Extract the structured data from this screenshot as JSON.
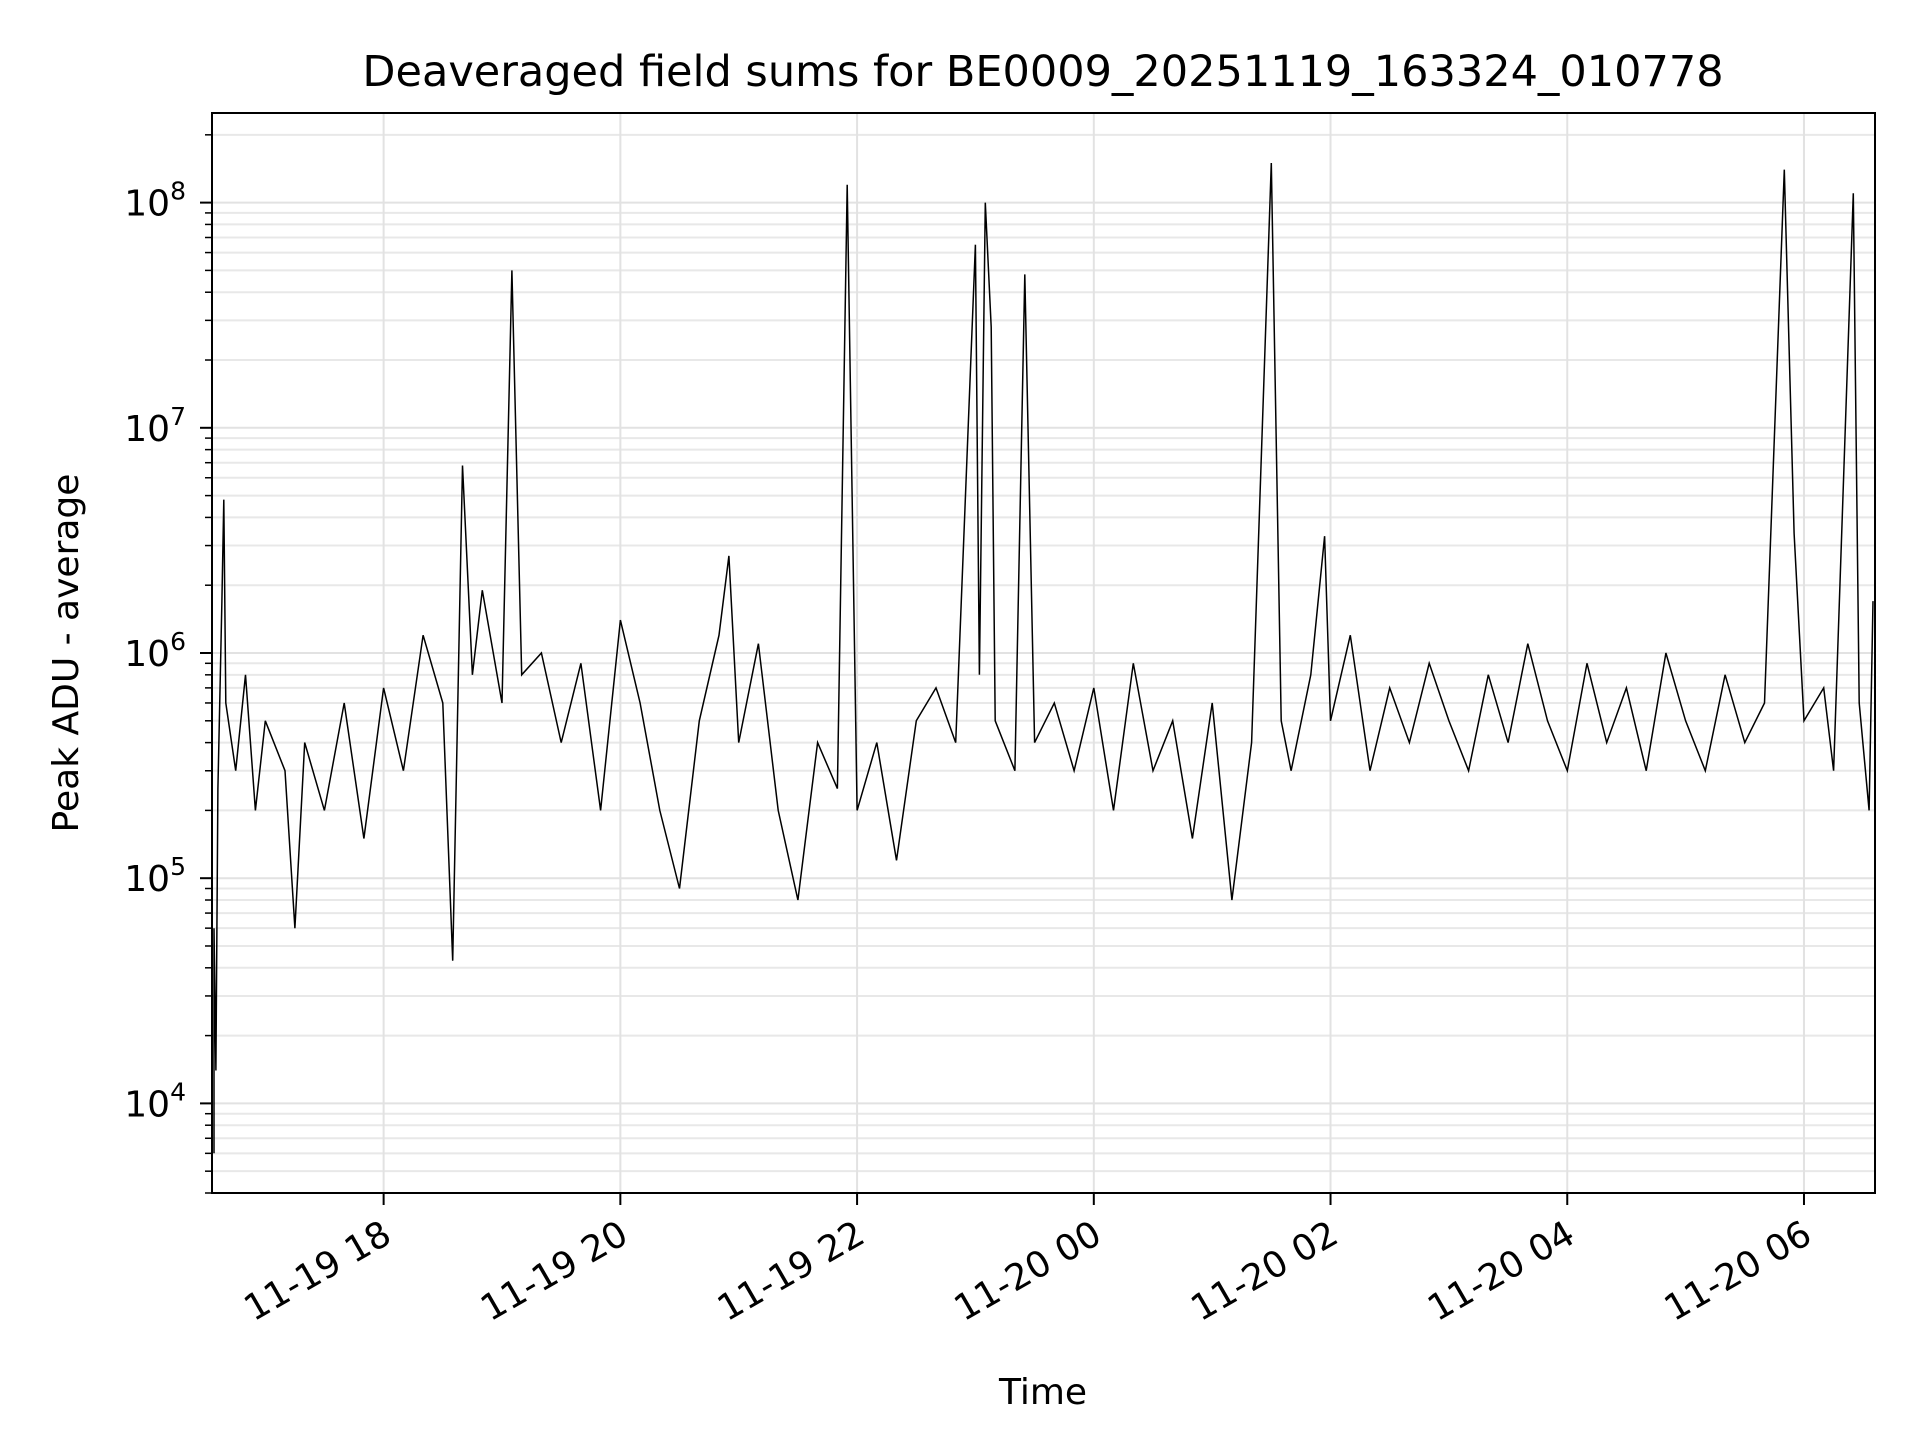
{
  "chart_data": {
    "type": "line",
    "title": "Deaveraged field sums for BE0009_20251119_163324_010778",
    "xlabel": "Time",
    "ylabel": "Peak ADU - average",
    "yscale": "log",
    "xlim": [
      "2025-11-19 16:33",
      "2025-11-20 06:36"
    ],
    "ylim": [
      4000,
      250000000
    ],
    "grid": "on",
    "line_color": "#000000",
    "x_ticks": [
      {
        "label": "11-19 18",
        "t": "2025-11-19 18:00"
      },
      {
        "label": "11-19 20",
        "t": "2025-11-19 20:00"
      },
      {
        "label": "11-19 22",
        "t": "2025-11-19 22:00"
      },
      {
        "label": "11-20 00",
        "t": "2025-11-20 00:00"
      },
      {
        "label": "11-20 02",
        "t": "2025-11-20 02:00"
      },
      {
        "label": "11-20 04",
        "t": "2025-11-20 04:00"
      },
      {
        "label": "11-20 06",
        "t": "2025-11-20 06:00"
      }
    ],
    "y_ticks": [
      {
        "base": "10",
        "exp": "4",
        "value": 10000
      },
      {
        "base": "10",
        "exp": "5",
        "value": 100000
      },
      {
        "base": "10",
        "exp": "6",
        "value": 1000000
      },
      {
        "base": "10",
        "exp": "7",
        "value": 10000000
      },
      {
        "base": "10",
        "exp": "8",
        "value": 100000000
      }
    ],
    "series": [
      {
        "points": [
          [
            "2025-11-19 16:34",
            6000
          ],
          [
            "2025-11-19 16:34",
            60000
          ],
          [
            "2025-11-19 16:35",
            14000
          ],
          [
            "2025-11-19 16:36",
            250000
          ],
          [
            "2025-11-19 16:38",
            1700000
          ],
          [
            "2025-11-19 16:39",
            4800000
          ],
          [
            "2025-11-19 16:40",
            600000
          ],
          [
            "2025-11-19 16:45",
            300000
          ],
          [
            "2025-11-19 16:50",
            800000
          ],
          [
            "2025-11-19 16:55",
            200000
          ],
          [
            "2025-11-19 17:00",
            500000
          ],
          [
            "2025-11-19 17:10",
            300000
          ],
          [
            "2025-11-19 17:15",
            60000
          ],
          [
            "2025-11-19 17:20",
            400000
          ],
          [
            "2025-11-19 17:30",
            200000
          ],
          [
            "2025-11-19 17:40",
            600000
          ],
          [
            "2025-11-19 17:50",
            150000
          ],
          [
            "2025-11-19 18:00",
            700000
          ],
          [
            "2025-11-19 18:10",
            300000
          ],
          [
            "2025-11-19 18:20",
            1200000
          ],
          [
            "2025-11-19 18:30",
            600000
          ],
          [
            "2025-11-19 18:35",
            43000
          ],
          [
            "2025-11-19 18:40",
            6800000
          ],
          [
            "2025-11-19 18:45",
            800000
          ],
          [
            "2025-11-19 18:50",
            1900000
          ],
          [
            "2025-11-19 19:00",
            600000
          ],
          [
            "2025-11-19 19:05",
            50000000
          ],
          [
            "2025-11-19 19:10",
            800000
          ],
          [
            "2025-11-19 19:20",
            1000000
          ],
          [
            "2025-11-19 19:30",
            400000
          ],
          [
            "2025-11-19 19:40",
            900000
          ],
          [
            "2025-11-19 19:50",
            200000
          ],
          [
            "2025-11-19 20:00",
            1400000
          ],
          [
            "2025-11-19 20:10",
            600000
          ],
          [
            "2025-11-19 20:20",
            200000
          ],
          [
            "2025-11-19 20:30",
            90000
          ],
          [
            "2025-11-19 20:40",
            500000
          ],
          [
            "2025-11-19 20:50",
            1200000
          ],
          [
            "2025-11-19 20:55",
            2700000
          ],
          [
            "2025-11-19 21:00",
            400000
          ],
          [
            "2025-11-19 21:10",
            1100000
          ],
          [
            "2025-11-19 21:20",
            200000
          ],
          [
            "2025-11-19 21:30",
            80000
          ],
          [
            "2025-11-19 21:40",
            400000
          ],
          [
            "2025-11-19 21:50",
            250000
          ],
          [
            "2025-11-19 21:55",
            120000000
          ],
          [
            "2025-11-19 22:00",
            200000
          ],
          [
            "2025-11-19 22:10",
            400000
          ],
          [
            "2025-11-19 22:20",
            120000
          ],
          [
            "2025-11-19 22:30",
            500000
          ],
          [
            "2025-11-19 22:40",
            700000
          ],
          [
            "2025-11-19 22:50",
            400000
          ],
          [
            "2025-11-19 23:00",
            65000000
          ],
          [
            "2025-11-19 23:02",
            800000
          ],
          [
            "2025-11-19 23:05",
            100000000
          ],
          [
            "2025-11-19 23:08",
            28000000
          ],
          [
            "2025-11-19 23:10",
            500000
          ],
          [
            "2025-11-19 23:20",
            300000
          ],
          [
            "2025-11-19 23:25",
            48000000
          ],
          [
            "2025-11-19 23:30",
            400000
          ],
          [
            "2025-11-19 23:40",
            600000
          ],
          [
            "2025-11-19 23:50",
            300000
          ],
          [
            "2025-11-20 00:00",
            700000
          ],
          [
            "2025-11-20 00:10",
            200000
          ],
          [
            "2025-11-20 00:20",
            900000
          ],
          [
            "2025-11-20 00:30",
            300000
          ],
          [
            "2025-11-20 00:40",
            500000
          ],
          [
            "2025-11-20 00:50",
            150000
          ],
          [
            "2025-11-20 01:00",
            600000
          ],
          [
            "2025-11-20 01:10",
            80000
          ],
          [
            "2025-11-20 01:20",
            400000
          ],
          [
            "2025-11-20 01:30",
            150000000
          ],
          [
            "2025-11-20 01:35",
            500000
          ],
          [
            "2025-11-20 01:40",
            300000
          ],
          [
            "2025-11-20 01:50",
            800000
          ],
          [
            "2025-11-20 01:57",
            3300000
          ],
          [
            "2025-11-20 02:00",
            500000
          ],
          [
            "2025-11-20 02:10",
            1200000
          ],
          [
            "2025-11-20 02:20",
            300000
          ],
          [
            "2025-11-20 02:30",
            700000
          ],
          [
            "2025-11-20 02:40",
            400000
          ],
          [
            "2025-11-20 02:50",
            900000
          ],
          [
            "2025-11-20 03:00",
            500000
          ],
          [
            "2025-11-20 03:10",
            300000
          ],
          [
            "2025-11-20 03:20",
            800000
          ],
          [
            "2025-11-20 03:30",
            400000
          ],
          [
            "2025-11-20 03:40",
            1100000
          ],
          [
            "2025-11-20 03:50",
            500000
          ],
          [
            "2025-11-20 04:00",
            300000
          ],
          [
            "2025-11-20 04:10",
            900000
          ],
          [
            "2025-11-20 04:20",
            400000
          ],
          [
            "2025-11-20 04:30",
            700000
          ],
          [
            "2025-11-20 04:40",
            300000
          ],
          [
            "2025-11-20 04:50",
            1000000
          ],
          [
            "2025-11-20 05:00",
            500000
          ],
          [
            "2025-11-20 05:10",
            300000
          ],
          [
            "2025-11-20 05:20",
            800000
          ],
          [
            "2025-11-20 05:30",
            400000
          ],
          [
            "2025-11-20 05:40",
            600000
          ],
          [
            "2025-11-20 05:50",
            140000000
          ],
          [
            "2025-11-20 05:55",
            3400000
          ],
          [
            "2025-11-20 06:00",
            500000
          ],
          [
            "2025-11-20 06:10",
            700000
          ],
          [
            "2025-11-20 06:15",
            300000
          ],
          [
            "2025-11-20 06:25",
            110000000
          ],
          [
            "2025-11-20 06:28",
            600000
          ],
          [
            "2025-11-20 06:33",
            200000
          ],
          [
            "2025-11-20 06:35",
            1700000
          ]
        ]
      }
    ]
  }
}
